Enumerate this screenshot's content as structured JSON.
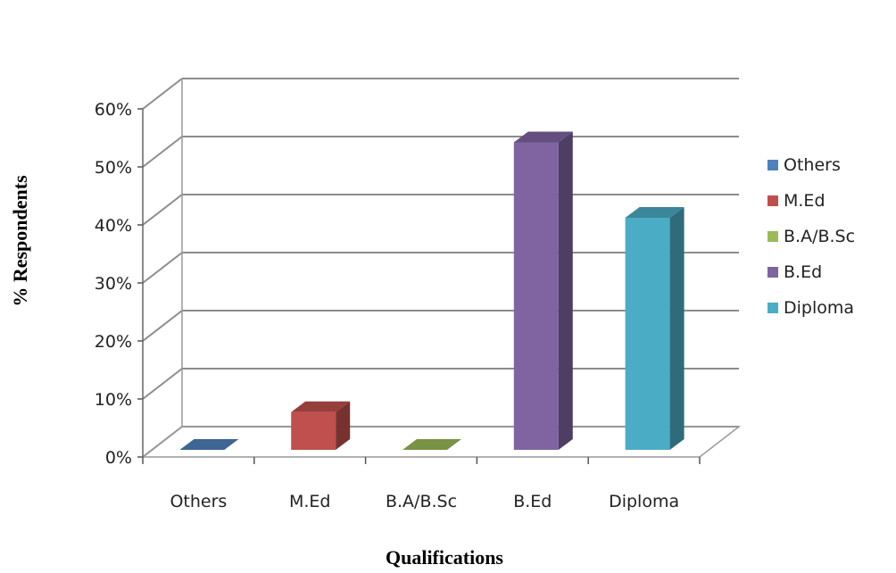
{
  "chart_data": {
    "type": "bar",
    "title": "",
    "xlabel": "Qualifications",
    "ylabel": "% Respondents",
    "categories": [
      "Others",
      "M.Ed",
      "B.A/B.Sc",
      "B.Ed",
      "Diploma"
    ],
    "values": [
      0,
      6.5,
      0,
      53,
      40
    ],
    "value_unit": "%",
    "ylim": [
      0,
      60
    ],
    "y_ticks": [
      "0%",
      "10%",
      "20%",
      "30%",
      "40%",
      "50%",
      "60%"
    ],
    "grid": true,
    "style": "3d-column",
    "legend": {
      "placement": "right",
      "entries": [
        "Others",
        "M.Ed",
        "B.A/B.Sc",
        "B.Ed",
        "Diploma"
      ]
    },
    "colors": [
      "#4f81bd",
      "#c0504d",
      "#9bbb59",
      "#8064a2",
      "#4bacc6"
    ]
  }
}
